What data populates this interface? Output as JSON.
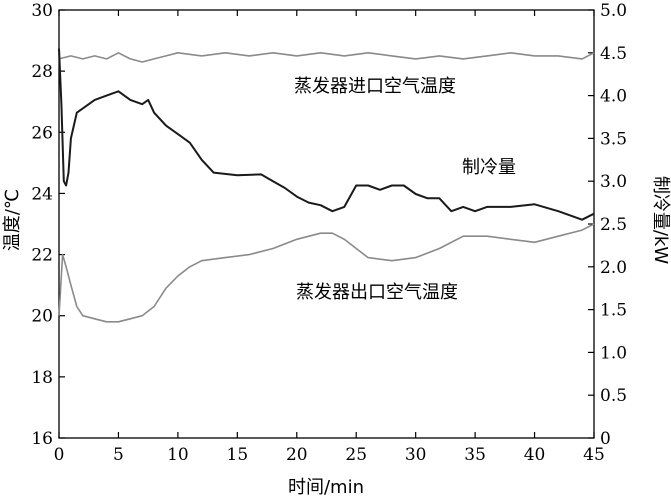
{
  "chart_data": {
    "type": "line",
    "title": "",
    "xlabel": "时间/min",
    "ylabel_left": "温度/℃",
    "ylabel_right": "制冷量/kW",
    "xlim": [
      0,
      45
    ],
    "ylim_left": [
      16,
      30
    ],
    "ylim_right": [
      0,
      5.0
    ],
    "x_ticks": [
      "0",
      "5",
      "10",
      "15",
      "20",
      "25",
      "30",
      "35",
      "40",
      "45"
    ],
    "y_left_ticks": [
      "16",
      "18",
      "20",
      "22",
      "24",
      "26",
      "28",
      "30"
    ],
    "y_right_ticks": [
      "0",
      "0.5",
      "1.0",
      "1.5",
      "2.0",
      "2.5",
      "3.0",
      "3.5",
      "4.0",
      "4.5",
      "5.0"
    ],
    "grid": false,
    "annotations": [
      {
        "text": "蒸发器进口空气温度",
        "series": "inlet"
      },
      {
        "text": "制冷量",
        "series": "cooling"
      },
      {
        "text": "蒸发器出口空气温度",
        "series": "outlet"
      }
    ],
    "series": [
      {
        "id": "inlet",
        "axis": "left",
        "color": "#8a8a8a",
        "x": [
          0,
          1,
          2,
          3,
          4,
          5,
          6,
          7,
          8,
          9,
          10,
          12,
          14,
          16,
          18,
          20,
          22,
          24,
          26,
          28,
          30,
          32,
          34,
          36,
          38,
          40,
          42,
          44,
          45
        ],
        "y": [
          28.4,
          28.5,
          28.4,
          28.5,
          28.4,
          28.6,
          28.4,
          28.3,
          28.4,
          28.5,
          28.6,
          28.5,
          28.6,
          28.5,
          28.6,
          28.5,
          28.6,
          28.5,
          28.6,
          28.5,
          28.4,
          28.5,
          28.4,
          28.5,
          28.6,
          28.5,
          28.5,
          28.4,
          28.6
        ]
      },
      {
        "id": "cooling",
        "axis": "right",
        "color": "#1a1a1a",
        "x": [
          0,
          0.2,
          0.4,
          0.6,
          0.8,
          1.0,
          1.5,
          2,
          3,
          4,
          5,
          6,
          7,
          7.5,
          8,
          9,
          10,
          11,
          12,
          13,
          15,
          17,
          18,
          19,
          20,
          21,
          22,
          23,
          24,
          25,
          26,
          27,
          28,
          29,
          30,
          31,
          32,
          33,
          34,
          35,
          36,
          38,
          40,
          42,
          44,
          45
        ],
        "y": [
          4.55,
          3.9,
          3.0,
          2.95,
          3.1,
          3.5,
          3.8,
          3.85,
          3.95,
          4.0,
          4.05,
          3.95,
          3.9,
          3.95,
          3.8,
          3.65,
          3.55,
          3.45,
          3.25,
          3.1,
          3.07,
          3.08,
          3.0,
          2.92,
          2.82,
          2.75,
          2.72,
          2.65,
          2.7,
          2.95,
          2.95,
          2.9,
          2.95,
          2.95,
          2.85,
          2.8,
          2.8,
          2.65,
          2.7,
          2.65,
          2.7,
          2.7,
          2.73,
          2.65,
          2.55,
          2.62
        ]
      },
      {
        "id": "outlet",
        "axis": "left",
        "color": "#8a8a8a",
        "x": [
          0,
          0.3,
          0.6,
          1.0,
          1.5,
          2,
          3,
          4,
          5,
          6,
          7,
          8,
          9,
          10,
          11,
          12,
          14,
          16,
          18,
          20,
          22,
          23,
          24,
          25,
          26,
          28,
          30,
          32,
          34,
          36,
          38,
          40,
          42,
          44,
          45
        ],
        "y": [
          20.0,
          22.0,
          21.6,
          21.0,
          20.3,
          20.0,
          19.9,
          19.8,
          19.8,
          19.9,
          20.0,
          20.3,
          20.9,
          21.3,
          21.6,
          21.8,
          21.9,
          22.0,
          22.2,
          22.5,
          22.7,
          22.7,
          22.5,
          22.2,
          21.9,
          21.8,
          21.9,
          22.2,
          22.6,
          22.6,
          22.5,
          22.4,
          22.6,
          22.8,
          23.0
        ]
      }
    ]
  }
}
